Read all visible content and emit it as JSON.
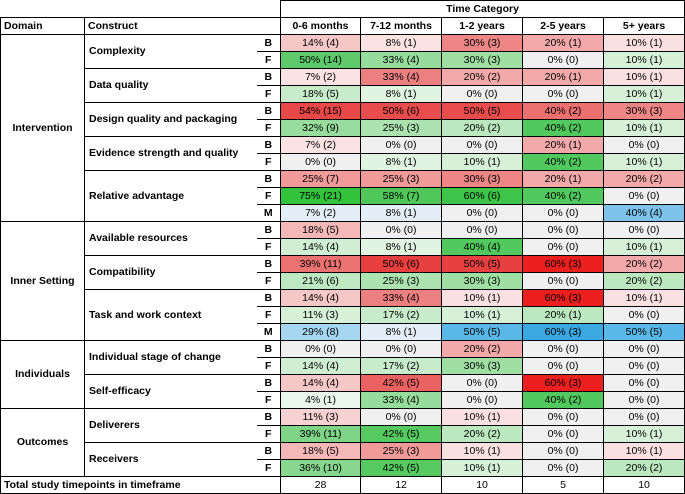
{
  "header": {
    "domain": "Domain",
    "construct": "Construct",
    "time_category": "Time Category",
    "categories": [
      "0-6 months",
      "7-12 months",
      "1-2 years",
      "2-5 years",
      "5+ years"
    ]
  },
  "domains": [
    {
      "name": "Intervention",
      "constructs": [
        {
          "name": "Complexity",
          "rows": [
            {
              "code": "B",
              "cells": [
                [
                  "14% (4)",
                  "#f6c7c7"
                ],
                [
                  "8% (1)",
                  "#fbe3e3"
                ],
                [
                  "30% (3)",
                  "#ee8686"
                ],
                [
                  "20% (1)",
                  "#f3a9a9"
                ],
                [
                  "10% (1)",
                  "#fae0e0"
                ]
              ]
            },
            {
              "code": "F",
              "cells": [
                [
                  "50% (14)",
                  "#5fca6b"
                ],
                [
                  "33% (4)",
                  "#96dc9c"
                ],
                [
                  "30% (3)",
                  "#9fdfa4"
                ],
                [
                  "0% (0)",
                  "#f0f0f0"
                ],
                [
                  "10% (1)",
                  "#d7f1d9"
                ]
              ]
            }
          ]
        },
        {
          "name": "Data quality",
          "rows": [
            {
              "code": "B",
              "cells": [
                [
                  "7% (2)",
                  "#fbe3e3"
                ],
                [
                  "33% (4)",
                  "#ec7f7f"
                ],
                [
                  "20% (2)",
                  "#f3a9a9"
                ],
                [
                  "20% (1)",
                  "#f3a9a9"
                ],
                [
                  "10% (1)",
                  "#fae0e0"
                ]
              ]
            },
            {
              "code": "F",
              "cells": [
                [
                  "18% (5)",
                  "#c8ebcb"
                ],
                [
                  "8% (1)",
                  "#e0f4e1"
                ],
                [
                  "0% (0)",
                  "#f0f0f0"
                ],
                [
                  "0% (0)",
                  "#f0f0f0"
                ],
                [
                  "10% (1)",
                  "#d7f1d9"
                ]
              ]
            }
          ]
        },
        {
          "name": "Design quality and packaging",
          "rows": [
            {
              "code": "B",
              "cells": [
                [
                  "54% (15)",
                  "#e84848"
                ],
                [
                  "50% (6)",
                  "#e84c4c"
                ],
                [
                  "50% (5)",
                  "#e84c4c"
                ],
                [
                  "40% (2)",
                  "#ec7070"
                ],
                [
                  "30% (3)",
                  "#ee8686"
                ]
              ]
            },
            {
              "code": "F",
              "cells": [
                [
                  "32% (9)",
                  "#98dd9e"
                ],
                [
                  "25% (3)",
                  "#ace3b1"
                ],
                [
                  "20% (2)",
                  "#bce8c0"
                ],
                [
                  "40% (2)",
                  "#52c95e"
                ],
                [
                  "10% (1)",
                  "#d7f1d9"
                ]
              ]
            }
          ]
        },
        {
          "name": "Evidence strength and quality",
          "rows": [
            {
              "code": "B",
              "cells": [
                [
                  "7% (2)",
                  "#fbe3e3"
                ],
                [
                  "0% (0)",
                  "#f0f0f0"
                ],
                [
                  "0% (0)",
                  "#f0f0f0"
                ],
                [
                  "20% (1)",
                  "#f3a9a9"
                ],
                [
                  "0% (0)",
                  "#f0f0f0"
                ]
              ]
            },
            {
              "code": "F",
              "cells": [
                [
                  "0% (0)",
                  "#f0f0f0"
                ],
                [
                  "8% (1)",
                  "#e0f4e1"
                ],
                [
                  "10% (1)",
                  "#d7f1d9"
                ],
                [
                  "40% (2)",
                  "#52c95e"
                ],
                [
                  "10% (1)",
                  "#d7f1d9"
                ]
              ]
            }
          ]
        },
        {
          "name": "Relative advantage",
          "rows": [
            {
              "code": "B",
              "cells": [
                [
                  "25% (7)",
                  "#f09a9a"
                ],
                [
                  "25% (3)",
                  "#f09a9a"
                ],
                [
                  "30% (3)",
                  "#ee8686"
                ],
                [
                  "20% (1)",
                  "#f3a9a9"
                ],
                [
                  "20% (2)",
                  "#f3a9a9"
                ]
              ]
            },
            {
              "code": "F",
              "cells": [
                [
                  "75% (21)",
                  "#33c23c"
                ],
                [
                  "58% (7)",
                  "#4fc759"
                ],
                [
                  "60% (6)",
                  "#3ec449"
                ],
                [
                  "40% (2)",
                  "#52c95e"
                ],
                [
                  "0% (0)",
                  "#f0f0f0"
                ]
              ]
            },
            {
              "code": "M",
              "cells": [
                [
                  "7% (2)",
                  "#e3eef9"
                ],
                [
                  "8% (1)",
                  "#e3eef9"
                ],
                [
                  "0% (0)",
                  "#f0f0f0"
                ],
                [
                  "0% (0)",
                  "#f0f0f0"
                ],
                [
                  "40% (4)",
                  "#7ec3ea"
                ]
              ]
            }
          ]
        }
      ]
    },
    {
      "name": "Inner Setting",
      "constructs": [
        {
          "name": "Available resources",
          "rows": [
            {
              "code": "B",
              "cells": [
                [
                  "18% (5)",
                  "#f5b8b8"
                ],
                [
                  "0% (0)",
                  "#f0f0f0"
                ],
                [
                  "0% (0)",
                  "#f0f0f0"
                ],
                [
                  "0% (0)",
                  "#f0f0f0"
                ],
                [
                  "0% (0)",
                  "#f0f0f0"
                ]
              ]
            },
            {
              "code": "F",
              "cells": [
                [
                  "14% (4)",
                  "#d0eed3"
                ],
                [
                  "8% (1)",
                  "#e0f4e1"
                ],
                [
                  "40% (4)",
                  "#52c95e"
                ],
                [
                  "0% (0)",
                  "#f0f0f0"
                ],
                [
                  "10% (1)",
                  "#d7f1d9"
                ]
              ]
            }
          ]
        },
        {
          "name": "Compatibility",
          "rows": [
            {
              "code": "B",
              "cells": [
                [
                  "39% (11)",
                  "#ec7272"
                ],
                [
                  "50% (6)",
                  "#e84040"
                ],
                [
                  "50% (5)",
                  "#e84040"
                ],
                [
                  "60% (3)",
                  "#ee1f1f"
                ],
                [
                  "20% (2)",
                  "#f3a9a9"
                ]
              ]
            },
            {
              "code": "F",
              "cells": [
                [
                  "21% (6)",
                  "#bde8c1"
                ],
                [
                  "25% (3)",
                  "#ace3b1"
                ],
                [
                  "30% (3)",
                  "#9fdfa4"
                ],
                [
                  "0% (0)",
                  "#f0f0f0"
                ],
                [
                  "20% (2)",
                  "#bce8c0"
                ]
              ]
            }
          ]
        },
        {
          "name": "Task and work context",
          "rows": [
            {
              "code": "B",
              "cells": [
                [
                  "14% (4)",
                  "#f6c7c7"
                ],
                [
                  "33% (4)",
                  "#ec7f7f"
                ],
                [
                  "10% (1)",
                  "#fae0e0"
                ],
                [
                  "60% (3)",
                  "#ee1f1f"
                ],
                [
                  "10% (1)",
                  "#fae0e0"
                ]
              ]
            },
            {
              "code": "F",
              "cells": [
                [
                  "11% (3)",
                  "#d7f1d9"
                ],
                [
                  "17% (2)",
                  "#c8ebcb"
                ],
                [
                  "10% (1)",
                  "#d7f1d9"
                ],
                [
                  "20% (1)",
                  "#bce8c0"
                ],
                [
                  "0% (0)",
                  "#f0f0f0"
                ]
              ]
            },
            {
              "code": "M",
              "cells": [
                [
                  "29% (8)",
                  "#a7d6f1"
                ],
                [
                  "8% (1)",
                  "#e3eef9"
                ],
                [
                  "50% (5)",
                  "#5ab7e8"
                ],
                [
                  "60% (3)",
                  "#3aa8e2"
                ],
                [
                  "50% (5)",
                  "#5ab7e8"
                ]
              ]
            }
          ]
        }
      ]
    },
    {
      "name": "Individuals",
      "constructs": [
        {
          "name": "Individual stage of change",
          "rows": [
            {
              "code": "B",
              "cells": [
                [
                  "0% (0)",
                  "#f0f0f0"
                ],
                [
                  "0% (0)",
                  "#f0f0f0"
                ],
                [
                  "20% (2)",
                  "#f3a9a9"
                ],
                [
                  "0% (0)",
                  "#f0f0f0"
                ],
                [
                  "0% (0)",
                  "#f0f0f0"
                ]
              ]
            },
            {
              "code": "F",
              "cells": [
                [
                  "14% (4)",
                  "#d0eed3"
                ],
                [
                  "17% (2)",
                  "#c8ebcb"
                ],
                [
                  "30% (3)",
                  "#9fdfa4"
                ],
                [
                  "0% (0)",
                  "#f0f0f0"
                ],
                [
                  "0% (0)",
                  "#f0f0f0"
                ]
              ]
            }
          ]
        },
        {
          "name": "Self-efficacy",
          "rows": [
            {
              "code": "B",
              "cells": [
                [
                  "14% (4)",
                  "#f6c7c7"
                ],
                [
                  "42% (5)",
                  "#ea6262"
                ],
                [
                  "0% (0)",
                  "#f0f0f0"
                ],
                [
                  "60% (3)",
                  "#ee1f1f"
                ],
                [
                  "0% (0)",
                  "#f0f0f0"
                ]
              ]
            },
            {
              "code": "F",
              "cells": [
                [
                  "4% (1)",
                  "#e8f7e9"
                ],
                [
                  "33% (4)",
                  "#96dc9c"
                ],
                [
                  "0% (0)",
                  "#f0f0f0"
                ],
                [
                  "40% (2)",
                  "#52c95e"
                ],
                [
                  "0% (0)",
                  "#f0f0f0"
                ]
              ]
            }
          ]
        }
      ]
    },
    {
      "name": "Outcomes",
      "constructs": [
        {
          "name": "Deliverers",
          "rows": [
            {
              "code": "B",
              "cells": [
                [
                  "11% (3)",
                  "#f8d2d2"
                ],
                [
                  "0% (0)",
                  "#f0f0f0"
                ],
                [
                  "10% (1)",
                  "#fae0e0"
                ],
                [
                  "0% (0)",
                  "#f0f0f0"
                ],
                [
                  "0% (0)",
                  "#f0f0f0"
                ]
              ]
            },
            {
              "code": "F",
              "cells": [
                [
                  "39% (11)",
                  "#7fd488"
                ],
                [
                  "42% (5)",
                  "#56c960"
                ],
                [
                  "20% (2)",
                  "#bce8c0"
                ],
                [
                  "0% (0)",
                  "#f0f0f0"
                ],
                [
                  "10% (1)",
                  "#d7f1d9"
                ]
              ]
            }
          ]
        },
        {
          "name": "Receivers",
          "rows": [
            {
              "code": "B",
              "cells": [
                [
                  "18% (5)",
                  "#f5b8b8"
                ],
                [
                  "25% (3)",
                  "#f09a9a"
                ],
                [
                  "10% (1)",
                  "#fae0e0"
                ],
                [
                  "0% (0)",
                  "#f0f0f0"
                ],
                [
                  "10% (1)",
                  "#fae0e0"
                ]
              ]
            },
            {
              "code": "F",
              "cells": [
                [
                  "36% (10)",
                  "#88d78f"
                ],
                [
                  "42% (5)",
                  "#56c960"
                ],
                [
                  "10% (1)",
                  "#d7f1d9"
                ],
                [
                  "0% (0)",
                  "#f0f0f0"
                ],
                [
                  "20% (2)",
                  "#bce8c0"
                ]
              ]
            }
          ]
        }
      ]
    }
  ],
  "total": {
    "label": "Total study timepoints in timeframe",
    "values": [
      "28",
      "12",
      "10",
      "5",
      "10"
    ]
  }
}
